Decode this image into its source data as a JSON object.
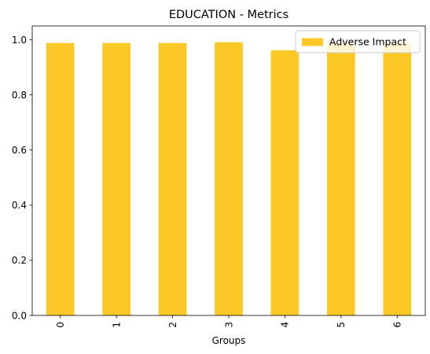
{
  "chart_data": {
    "type": "bar",
    "title": "EDUCATION - Metrics",
    "xlabel": "Groups",
    "ylabel": "",
    "categories": [
      "0",
      "1",
      "2",
      "3",
      "4",
      "5",
      "6"
    ],
    "series": [
      {
        "name": "Adverse Impact",
        "color": "#fcc826",
        "values": [
          0.988,
          0.988,
          0.988,
          0.991,
          0.962,
          0.988,
          0.988
        ]
      }
    ],
    "ylim": [
      0,
      1.05
    ],
    "yticks": [
      "0.0",
      "0.2",
      "0.4",
      "0.6",
      "0.8",
      "1.0"
    ],
    "grid": false,
    "legend_position": "top-right"
  }
}
